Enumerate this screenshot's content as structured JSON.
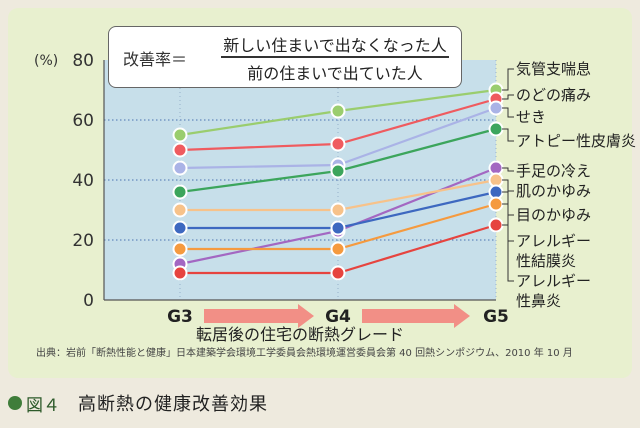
{
  "formula": {
    "lhs": "改善率＝",
    "numerator": "新しい住まいで出なくなった人",
    "denominator": "前の住まいで出ていた人"
  },
  "source": "出典：岩前「断熱性能と健康」日本建築学会環境工学委員会熱環境運営委員会第 40 回熱シンポジウム、2010 年 10 月",
  "caption": {
    "figure": "図４",
    "title": "高断熱の健康改善効果"
  },
  "colors": {
    "panel": "#e8f0cf",
    "plot_area": "#c7dfea",
    "arrow": "#f28f86",
    "caption_dot": "#3f7d3a"
  },
  "chart_data": {
    "type": "line",
    "ylabel": "(%)",
    "xlabel": "転居後の住宅の断熱グレード",
    "ylim": [
      0,
      80
    ],
    "yticks": [
      0,
      20,
      40,
      60,
      80
    ],
    "categories": [
      "G3",
      "G4",
      "G5"
    ],
    "grid": "dotted-horizontal",
    "series": [
      {
        "name": "気管支喘息",
        "values": [
          55,
          63,
          70
        ],
        "color": "#9acd6e"
      },
      {
        "name": "のどの痛み",
        "values": [
          50,
          52,
          67
        ],
        "color": "#ef5b5f"
      },
      {
        "name": "せき",
        "values": [
          44,
          45,
          64
        ],
        "color": "#aab3e6"
      },
      {
        "name": "アトピー性皮膚炎",
        "values": [
          36,
          43,
          57
        ],
        "color": "#3ca55c"
      },
      {
        "name": "手足の冷え",
        "values": [
          12,
          23,
          44
        ],
        "color": "#a367c2"
      },
      {
        "name": "肌のかゆみ",
        "values": [
          30,
          30,
          40
        ],
        "color": "#f7c28a"
      },
      {
        "name": "目のかゆみ",
        "values": [
          24,
          24,
          36
        ],
        "color": "#3d68c0"
      },
      {
        "name": "アレルギー性結膜炎",
        "values": [
          17,
          17,
          32
        ],
        "color": "#f59a3f"
      },
      {
        "name": "アレルギー性鼻炎",
        "values": [
          9,
          9,
          25
        ],
        "color": "#e6443f"
      }
    ],
    "legend_labels": [
      [
        "気管支喘息"
      ],
      [
        "のどの痛み"
      ],
      [
        "せき"
      ],
      [
        "アトピー性皮膚炎"
      ],
      [
        "手足の冷え"
      ],
      [
        "肌のかゆみ"
      ],
      [
        "目のかゆみ"
      ],
      [
        "アレルギー",
        "性結膜炎"
      ],
      [
        "アレルギー",
        "性鼻炎"
      ]
    ]
  }
}
